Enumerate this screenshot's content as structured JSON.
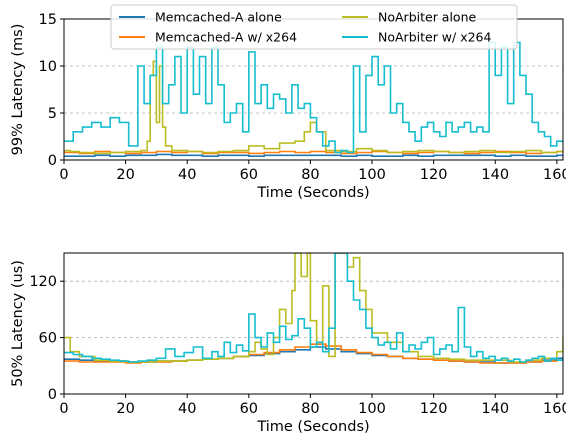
{
  "chart_data": [
    {
      "type": "line",
      "xlabel": "Time (Seconds)",
      "ylabel": "99% Latency (ms)",
      "xlim": [
        0,
        162
      ],
      "ylim": [
        0,
        15
      ],
      "xticks": [
        0,
        20,
        40,
        60,
        80,
        100,
        120,
        140,
        160
      ],
      "yticks": [
        0,
        5,
        10,
        15
      ],
      "ygrid": true,
      "legend": "top-center",
      "series": [
        {
          "name": "Memcached-A alone",
          "color": "#1f77b4",
          "x": [
            0,
            5,
            10,
            15,
            20,
            25,
            30,
            35,
            40,
            45,
            50,
            55,
            60,
            65,
            70,
            75,
            80,
            85,
            90,
            95,
            100,
            105,
            110,
            115,
            120,
            125,
            130,
            135,
            140,
            145,
            150,
            155,
            160,
            162
          ],
          "y": [
            0.4,
            0.4,
            0.5,
            0.4,
            0.5,
            0.5,
            0.6,
            0.5,
            0.5,
            0.4,
            0.5,
            0.5,
            0.4,
            0.5,
            0.5,
            0.5,
            0.5,
            0.5,
            0.4,
            0.5,
            0.4,
            0.4,
            0.5,
            0.4,
            0.5,
            0.5,
            0.5,
            0.5,
            0.4,
            0.5,
            0.4,
            0.4,
            0.5,
            0.5
          ]
        },
        {
          "name": "Memcached-A w/ x264",
          "color": "#ff7f0e",
          "x": [
            0,
            5,
            10,
            15,
            20,
            25,
            30,
            35,
            40,
            45,
            50,
            55,
            60,
            65,
            70,
            75,
            80,
            85,
            90,
            95,
            100,
            105,
            110,
            115,
            120,
            125,
            130,
            135,
            140,
            145,
            150,
            155,
            160,
            162
          ],
          "y": [
            0.8,
            0.7,
            0.9,
            0.8,
            0.7,
            0.8,
            0.9,
            0.8,
            0.9,
            0.7,
            0.8,
            0.8,
            0.7,
            0.8,
            0.9,
            0.8,
            0.9,
            0.8,
            0.7,
            0.8,
            0.9,
            0.8,
            0.7,
            0.8,
            0.9,
            0.8,
            0.7,
            0.8,
            0.9,
            0.8,
            0.7,
            0.8,
            0.9,
            0.8
          ]
        },
        {
          "name": "NoArbiter alone",
          "color": "#bcbd22",
          "x": [
            0,
            2,
            5,
            10,
            15,
            20,
            25,
            27,
            28,
            29,
            30,
            31,
            32,
            33,
            35,
            40,
            45,
            50,
            55,
            60,
            65,
            70,
            75,
            78,
            80,
            82,
            85,
            90,
            95,
            100,
            105,
            110,
            115,
            120,
            125,
            130,
            135,
            140,
            145,
            150,
            155,
            160,
            162
          ],
          "y": [
            1.0,
            0.9,
            0.8,
            0.7,
            0.8,
            0.9,
            1.0,
            2.0,
            9.0,
            10.5,
            4.0,
            10.0,
            3.5,
            1.5,
            1.0,
            0.9,
            0.8,
            0.9,
            1.0,
            1.5,
            1.2,
            1.8,
            2.0,
            3.0,
            4.0,
            3.0,
            1.0,
            0.9,
            1.2,
            1.0,
            0.8,
            0.9,
            1.0,
            0.9,
            0.8,
            0.9,
            1.0,
            0.8,
            0.9,
            1.0,
            0.8,
            0.9,
            1.0
          ]
        },
        {
          "name": "NoArbiter w/ x264",
          "color": "#17becf",
          "x": [
            0,
            3,
            6,
            9,
            12,
            15,
            18,
            21,
            24,
            26,
            28,
            30,
            32,
            34,
            36,
            38,
            40,
            42,
            44,
            46,
            48,
            50,
            52,
            54,
            56,
            58,
            60,
            62,
            64,
            66,
            68,
            70,
            72,
            74,
            76,
            78,
            80,
            82,
            84,
            86,
            88,
            90,
            92,
            94,
            96,
            98,
            100,
            102,
            104,
            106,
            108,
            110,
            112,
            114,
            116,
            118,
            120,
            122,
            124,
            126,
            128,
            130,
            132,
            134,
            136,
            138,
            140,
            142,
            144,
            146,
            148,
            150,
            152,
            154,
            156,
            158,
            160,
            162
          ],
          "y": [
            2.0,
            3.0,
            3.5,
            4.0,
            3.5,
            4.5,
            4.0,
            1.5,
            10.0,
            6.0,
            9.0,
            12.0,
            6.0,
            8.0,
            11.0,
            5.0,
            12.0,
            7.0,
            11.0,
            6.0,
            12.0,
            8.0,
            4.0,
            5.0,
            6.0,
            3.0,
            11.5,
            6.0,
            8.0,
            5.5,
            7.0,
            6.5,
            5.0,
            8.0,
            5.5,
            6.0,
            4.5,
            3.0,
            1.5,
            2.0,
            0.8,
            1.0,
            0.8,
            10.0,
            3.0,
            9.0,
            11.0,
            8.0,
            10.0,
            5.0,
            6.0,
            4.0,
            3.0,
            2.0,
            3.5,
            4.0,
            3.0,
            2.5,
            4.0,
            3.0,
            3.5,
            4.0,
            3.0,
            3.5,
            3.0,
            12.5,
            9.0,
            12.0,
            6.0,
            12.5,
            9.0,
            7.0,
            4.0,
            3.0,
            2.5,
            1.5,
            2.0,
            1.8
          ]
        }
      ]
    },
    {
      "type": "line",
      "xlabel": "Time (Seconds)",
      "ylabel": "50% Latency (us)",
      "xlim": [
        0,
        162
      ],
      "ylim": [
        0,
        150
      ],
      "xticks": [
        0,
        20,
        40,
        60,
        80,
        100,
        120,
        140,
        160
      ],
      "yticks": [
        0,
        60,
        120
      ],
      "ygrid": true,
      "series": [
        {
          "name": "Memcached-A alone",
          "color": "#1f77b4",
          "x": [
            0,
            5,
            10,
            15,
            20,
            25,
            30,
            35,
            40,
            45,
            50,
            55,
            60,
            65,
            70,
            75,
            80,
            85,
            90,
            95,
            100,
            105,
            110,
            115,
            120,
            125,
            130,
            135,
            140,
            145,
            150,
            155,
            160,
            162
          ],
          "y": [
            37,
            36,
            35,
            35,
            34,
            34,
            35,
            35,
            36,
            37,
            38,
            40,
            41,
            43,
            45,
            47,
            50,
            48,
            45,
            43,
            41,
            40,
            38,
            37,
            36,
            35,
            34,
            34,
            33,
            33,
            34,
            36,
            38,
            39
          ]
        },
        {
          "name": "Memcached-A w/ x264",
          "color": "#ff7f0e",
          "x": [
            0,
            5,
            10,
            15,
            20,
            25,
            30,
            35,
            40,
            45,
            50,
            55,
            60,
            65,
            70,
            75,
            80,
            85,
            90,
            95,
            100,
            105,
            110,
            115,
            120,
            125,
            130,
            135,
            140,
            145,
            150,
            155,
            160,
            162
          ],
          "y": [
            35,
            34,
            34,
            34,
            33,
            34,
            34,
            35,
            36,
            37,
            38,
            40,
            42,
            44,
            47,
            50,
            53,
            51,
            47,
            44,
            42,
            40,
            38,
            37,
            36,
            35,
            34,
            33,
            33,
            33,
            34,
            35,
            36,
            37
          ]
        },
        {
          "name": "NoArbiter alone",
          "color": "#bcbd22",
          "x": [
            0,
            2,
            5,
            10,
            15,
            20,
            25,
            30,
            35,
            40,
            45,
            50,
            55,
            60,
            62,
            64,
            66,
            68,
            70,
            72,
            74,
            75,
            77,
            79,
            80,
            82,
            84,
            86,
            88,
            90,
            92,
            94,
            96,
            98,
            100,
            105,
            110,
            115,
            120,
            125,
            130,
            135,
            140,
            145,
            150,
            155,
            160,
            162
          ],
          "y": [
            60,
            45,
            40,
            36,
            35,
            34,
            34,
            35,
            35,
            36,
            37,
            38,
            40,
            45,
            55,
            48,
            42,
            60,
            90,
            75,
            110,
            150,
            125,
            150,
            78,
            55,
            115,
            40,
            150,
            150,
            135,
            145,
            110,
            90,
            65,
            55,
            45,
            40,
            38,
            37,
            36,
            36,
            36,
            34,
            36,
            38,
            45,
            60
          ]
        },
        {
          "name": "NoArbiter w/ x264",
          "color": "#17becf",
          "x": [
            0,
            3,
            6,
            9,
            12,
            15,
            18,
            21,
            24,
            27,
            30,
            33,
            36,
            39,
            42,
            45,
            48,
            50,
            52,
            54,
            56,
            58,
            60,
            62,
            64,
            66,
            68,
            70,
            72,
            74,
            76,
            78,
            80,
            82,
            84,
            86,
            88,
            90,
            92,
            94,
            96,
            98,
            100,
            102,
            104,
            106,
            108,
            110,
            112,
            114,
            116,
            118,
            120,
            122,
            124,
            126,
            128,
            130,
            132,
            134,
            136,
            138,
            140,
            142,
            144,
            146,
            148,
            150,
            152,
            154,
            156,
            158,
            160,
            162
          ],
          "y": [
            44,
            42,
            40,
            38,
            37,
            36,
            35,
            34,
            35,
            36,
            38,
            48,
            40,
            44,
            50,
            38,
            45,
            40,
            55,
            44,
            52,
            46,
            85,
            60,
            50,
            65,
            55,
            72,
            58,
            62,
            80,
            70,
            50,
            55,
            45,
            70,
            150,
            150,
            120,
            100,
            90,
            70,
            60,
            52,
            55,
            48,
            65,
            45,
            52,
            48,
            55,
            60,
            42,
            48,
            52,
            45,
            92,
            50,
            40,
            45,
            38,
            40,
            36,
            38,
            35,
            37,
            34,
            36,
            38,
            40,
            35,
            38,
            36,
            40
          ]
        }
      ]
    }
  ]
}
